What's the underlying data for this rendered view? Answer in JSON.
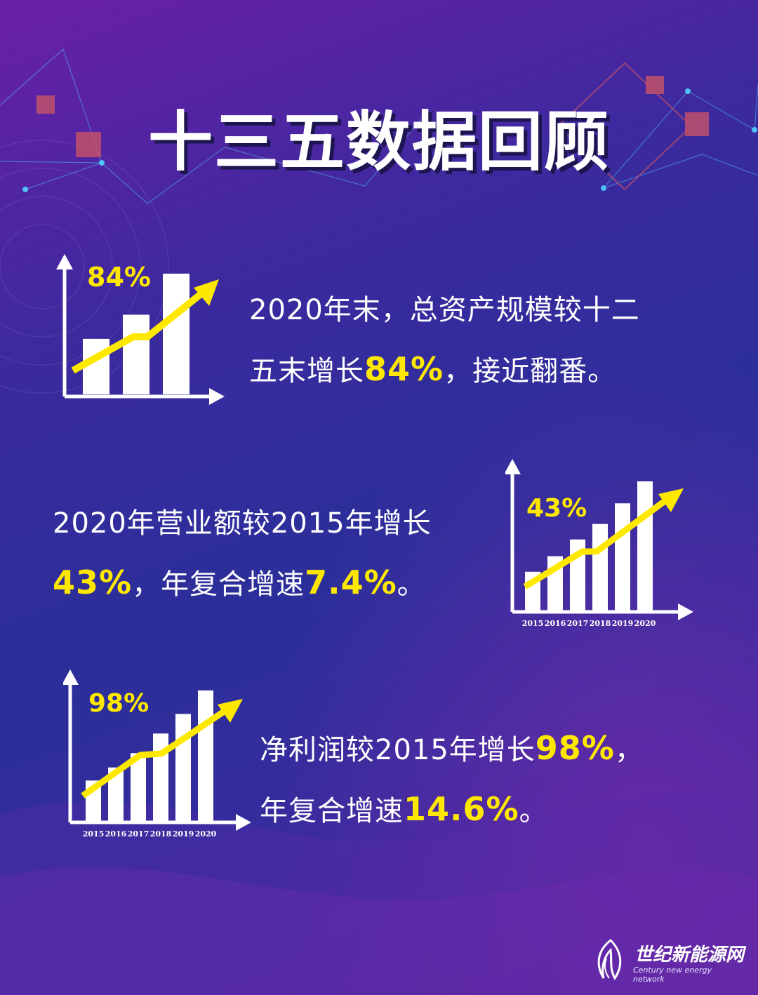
{
  "title": "十三五数据回顾",
  "section1": {
    "line1": "2020年末，总资产规模较十二",
    "line2_pre": "五末增长",
    "line2_hl": "84%",
    "line2_post": "，接近翻番。",
    "chart_label": "84%"
  },
  "section2": {
    "line1": "2020年营业额较2015年增长",
    "line2_hl1": "43%",
    "line2_mid": "，年复合增速",
    "line2_hl2": "7.4%",
    "line2_post": "。",
    "chart_label": "43%"
  },
  "section3": {
    "line1_pre": "净利润较2015年增长",
    "line1_hl": "98%",
    "line1_post": "，",
    "line2_pre": "年复合增速",
    "line2_hl": "14.6%",
    "line2_post": "。",
    "chart_label": "98%"
  },
  "chart_data": [
    {
      "type": "bar",
      "categories": [
        "",
        "",
        ""
      ],
      "values": [
        0.46,
        0.66,
        1.0
      ],
      "title": "84%"
    },
    {
      "type": "bar",
      "categories": [
        "2015",
        "2016",
        "2017",
        "2018",
        "2019",
        "2020"
      ],
      "values": [
        0.3,
        0.42,
        0.55,
        0.67,
        0.83,
        1.0
      ],
      "title": "43%"
    },
    {
      "type": "bar",
      "categories": [
        "2015",
        "2016",
        "2017",
        "2018",
        "2019",
        "2020"
      ],
      "values": [
        0.31,
        0.41,
        0.52,
        0.67,
        0.82,
        1.0
      ],
      "title": "98%"
    }
  ],
  "watermark": {
    "name": "世纪新能源网",
    "english": "Century new energy network"
  },
  "colors": {
    "accent_yellow": "#ffe800",
    "text_white": "#ffffff",
    "deco_square": "#c0506a"
  }
}
